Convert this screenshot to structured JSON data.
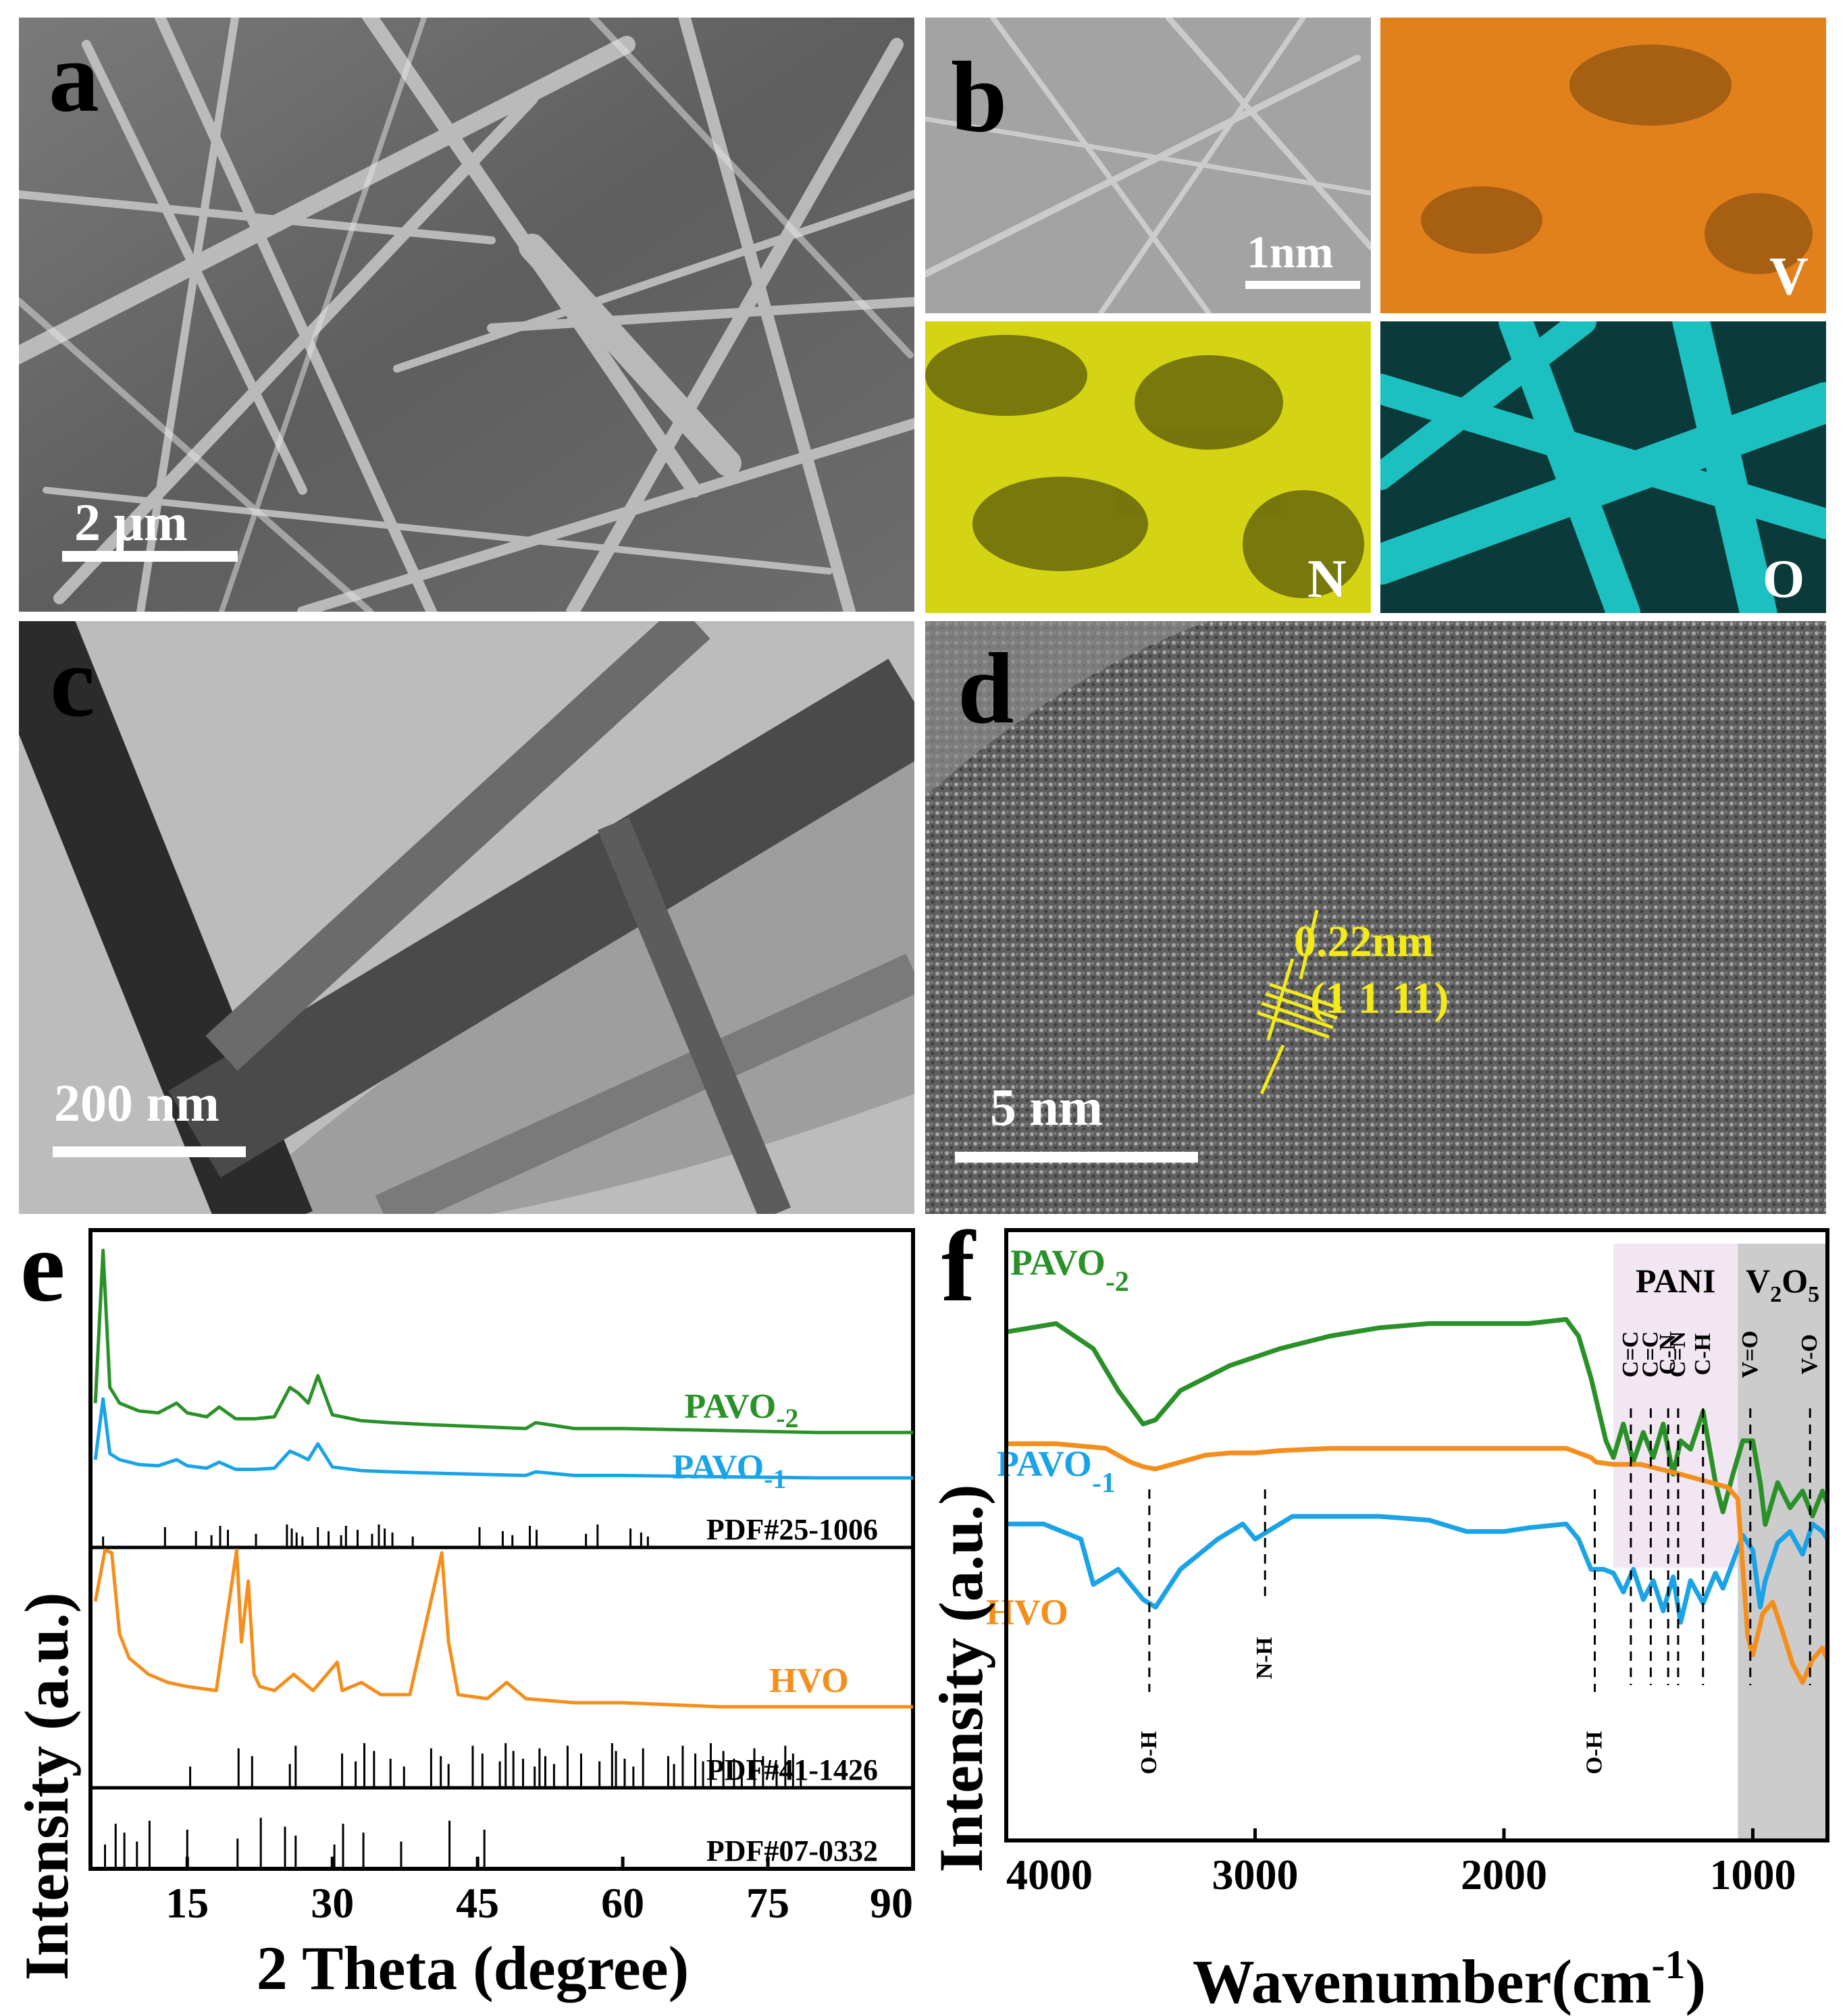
{
  "panels": {
    "a": {
      "label": "a",
      "scale_bar": "2 μm"
    },
    "b": {
      "label": "b",
      "scale_bar": "1nm",
      "maps": [
        {
          "element": "V",
          "color": "#e2811c"
        },
        {
          "element": "N",
          "color": "#d4d415"
        },
        {
          "element": "O",
          "color": "#21d8d8"
        }
      ]
    },
    "c": {
      "label": "c",
      "scale_bar": "200 nm"
    },
    "d": {
      "label": "d",
      "scale_bar": "5 nm",
      "lattice_spacing": "0.22nm",
      "lattice_plane": "(1 1 11)",
      "annotation_color": "#f2ea1a"
    }
  },
  "chart_data": [
    {
      "panel": "e",
      "type": "line",
      "xlabel": "2 Theta (degree)",
      "ylabel": "Intensity (a.u.)",
      "xlim": [
        5,
        90
      ],
      "xticks": [
        15,
        30,
        45,
        60,
        75,
        90
      ],
      "series": [
        {
          "name": "PAVO-2",
          "name_main": "PAVO",
          "name_sub": "-2",
          "color": "#2a9128",
          "x": [
            5.5,
            6.3,
            7.0,
            8,
            10,
            12,
            13.9,
            15,
            17,
            18.3,
            20,
            22,
            24,
            25.6,
            26.5,
            27.5,
            28.5,
            30,
            33,
            36,
            40,
            45,
            50,
            51,
            55,
            60,
            70,
            80,
            90
          ],
          "y": [
            0.22,
            1.0,
            0.3,
            0.22,
            0.18,
            0.17,
            0.22,
            0.17,
            0.15,
            0.2,
            0.14,
            0.14,
            0.15,
            0.3,
            0.27,
            0.22,
            0.36,
            0.16,
            0.13,
            0.12,
            0.11,
            0.1,
            0.09,
            0.12,
            0.09,
            0.09,
            0.08,
            0.07,
            0.07
          ]
        },
        {
          "name": "PAVO-1",
          "name_main": "PAVO",
          "name_sub": "-1",
          "color": "#1aa3e6",
          "x": [
            5.5,
            6.3,
            7.0,
            8,
            10,
            12,
            13.9,
            15,
            17,
            18.3,
            20,
            22,
            24,
            25.6,
            26.5,
            27.5,
            28.5,
            30,
            33,
            36,
            40,
            45,
            50,
            51,
            55,
            60,
            70,
            80,
            90
          ],
          "y": [
            0.2,
            0.7,
            0.25,
            0.2,
            0.16,
            0.15,
            0.2,
            0.15,
            0.13,
            0.18,
            0.12,
            0.12,
            0.13,
            0.27,
            0.24,
            0.2,
            0.33,
            0.14,
            0.11,
            0.1,
            0.09,
            0.08,
            0.07,
            0.1,
            0.07,
            0.07,
            0.06,
            0.05,
            0.05
          ]
        },
        {
          "name": "HVO",
          "color": "#f48e1c",
          "x": [
            5.5,
            6.5,
            7.2,
            8,
            9,
            11,
            13,
            15,
            18,
            20.1,
            20.6,
            21.3,
            21.9,
            22.5,
            24,
            26,
            28,
            30.5,
            31,
            33,
            35,
            38,
            41.3,
            42,
            43,
            46,
            48,
            50,
            55,
            60,
            70,
            80,
            90
          ],
          "y": [
            0.3,
            0.55,
            0.42,
            0.22,
            0.16,
            0.12,
            0.1,
            0.09,
            0.08,
            1.0,
            0.2,
            0.35,
            0.12,
            0.09,
            0.08,
            0.12,
            0.08,
            0.15,
            0.08,
            0.1,
            0.07,
            0.07,
            0.42,
            0.2,
            0.07,
            0.06,
            0.1,
            0.06,
            0.05,
            0.05,
            0.04,
            0.04,
            0.04
          ]
        }
      ],
      "reference_patterns": [
        {
          "name": "PDF#25-1006",
          "peaks": [
            6.3,
            12.7,
            15.9,
            17.5,
            18.4,
            19.2,
            22.1,
            25.3,
            25.8,
            26.3,
            26.9,
            28.5,
            29.6,
            30.9,
            31.4,
            32.6,
            34.1,
            34.8,
            35.4,
            36.2,
            38.3,
            45.2,
            47.6,
            48.6,
            50.4,
            51.1,
            56.2,
            57.4,
            60.8,
            61.9,
            62.6
          ],
          "color": "#000000"
        },
        {
          "name": "PDF#41-1426",
          "peaks": [
            15.3,
            20.3,
            21.7,
            25.6,
            26.2,
            31.0,
            32.4,
            33.3,
            34.3,
            36.0,
            37.4,
            40.2,
            41.2,
            42.0,
            44.5,
            45.5,
            47.3,
            47.9,
            48.7,
            49.7,
            50.9,
            51.4,
            52.0,
            52.9,
            54.3,
            55.7,
            57.6,
            58.9,
            59.3,
            60.2,
            61.1,
            62.1,
            64.7,
            65.3,
            66.2,
            67.5,
            68.3,
            69.1,
            70.4,
            71.5,
            72.3,
            73.6,
            74.5,
            75.9,
            76.8,
            77.6,
            78.4
          ],
          "color": "#000000"
        },
        {
          "name": "PDF#07-0332",
          "peaks": [
            6.5,
            7.6,
            8.5,
            9.8,
            11.1,
            15.0,
            20.2,
            22.6,
            25.1,
            26.2,
            30.2,
            31.1,
            33.2,
            37.1,
            42.1,
            45.7
          ],
          "color": "#000000"
        }
      ]
    },
    {
      "panel": "f",
      "type": "line",
      "xlabel": "Wavenumber(cm-1)",
      "xlabel_main": "Wavenumber(cm",
      "xlabel_sup": "-1",
      "xlabel_close": ")",
      "ylabel": "Intensity (a.u.)",
      "xlim": [
        4000,
        700
      ],
      "xticks": [
        4000,
        3000,
        2000,
        1000
      ],
      "regions": [
        {
          "name": "PANI",
          "from": 1560,
          "to": 1060,
          "color": "#f1e6f1"
        },
        {
          "name": "V2O5",
          "name_main": "V",
          "name_sub1": "2",
          "name_mid": "O",
          "name_sub2": "5",
          "from": 1060,
          "to": 700,
          "color": "#cccccc"
        }
      ],
      "series": [
        {
          "name": "PAVO-2",
          "name_main": "PAVO",
          "name_sub": "-2",
          "color": "#2a9128",
          "x": [
            4000,
            3800,
            3650,
            3550,
            3450,
            3400,
            3300,
            3100,
            2900,
            2700,
            2500,
            2300,
            2100,
            1900,
            1750,
            1700,
            1650,
            1590,
            1560,
            1520,
            1480,
            1440,
            1400,
            1360,
            1320,
            1290,
            1250,
            1200,
            1150,
            1120,
            1080,
            1040,
            1000,
            970,
            950,
            900,
            850,
            800,
            760,
            720,
            700
          ],
          "y": [
            0.86,
            0.88,
            0.82,
            0.72,
            0.64,
            0.65,
            0.72,
            0.78,
            0.82,
            0.85,
            0.87,
            0.88,
            0.88,
            0.88,
            0.89,
            0.85,
            0.75,
            0.6,
            0.56,
            0.64,
            0.55,
            0.62,
            0.56,
            0.64,
            0.52,
            0.6,
            0.58,
            0.67,
            0.5,
            0.43,
            0.52,
            0.6,
            0.6,
            0.5,
            0.4,
            0.5,
            0.44,
            0.48,
            0.42,
            0.48,
            0.45
          ]
        },
        {
          "name": "PAVO-1",
          "name_main": "PAVO",
          "name_sub": "-1",
          "color": "#1aa3e6",
          "x": [
            4000,
            3850,
            3700,
            3650,
            3550,
            3450,
            3400,
            3300,
            3150,
            3050,
            3000,
            2950,
            2850,
            2700,
            2500,
            2300,
            2150,
            2000,
            1900,
            1750,
            1700,
            1650,
            1600,
            1560,
            1520,
            1480,
            1440,
            1400,
            1360,
            1320,
            1290,
            1250,
            1200,
            1150,
            1120,
            1080,
            1040,
            1000,
            970,
            950,
            900,
            850,
            800,
            760,
            720,
            700
          ],
          "y": [
            0.48,
            0.48,
            0.44,
            0.32,
            0.36,
            0.28,
            0.26,
            0.36,
            0.44,
            0.48,
            0.44,
            0.46,
            0.5,
            0.5,
            0.5,
            0.49,
            0.46,
            0.46,
            0.47,
            0.48,
            0.44,
            0.36,
            0.36,
            0.35,
            0.3,
            0.36,
            0.28,
            0.33,
            0.25,
            0.34,
            0.22,
            0.33,
            0.27,
            0.35,
            0.31,
            0.38,
            0.45,
            0.41,
            0.26,
            0.33,
            0.43,
            0.46,
            0.4,
            0.48,
            0.46,
            0.44
          ]
        },
        {
          "name": "HVO",
          "color": "#f48e1c",
          "x": [
            4000,
            3800,
            3600,
            3500,
            3450,
            3400,
            3300,
            3200,
            3100,
            3000,
            2900,
            2700,
            2500,
            2300,
            2100,
            1900,
            1750,
            1700,
            1650,
            1630,
            1560,
            1450,
            1300,
            1200,
            1100,
            1060,
            1040,
            1020,
            1000,
            960,
            920,
            880,
            840,
            800,
            760,
            720,
            700
          ],
          "y": [
            0.14,
            0.14,
            0.12,
            0.06,
            0.04,
            0.03,
            0.06,
            0.09,
            0.1,
            0.1,
            0.11,
            0.12,
            0.12,
            0.12,
            0.12,
            0.12,
            0.12,
            0.1,
            0.08,
            0.06,
            0.05,
            0.05,
            0.01,
            -0.02,
            -0.05,
            -0.1,
            -0.4,
            -0.7,
            -0.78,
            -0.6,
            -0.55,
            -0.68,
            -0.82,
            -0.9,
            -0.8,
            -0.75,
            -0.8
          ]
        }
      ],
      "bond_labels": [
        {
          "text": "O-H",
          "x": 3425
        },
        {
          "text": "N-H",
          "x": 2960
        },
        {
          "text": "O-H",
          "x": 1635
        },
        {
          "text": "C=C",
          "x": 1490
        },
        {
          "text": "C=C",
          "x": 1410
        },
        {
          "text": "C-N",
          "x": 1340
        },
        {
          "text": "C=N",
          "x": 1300
        },
        {
          "text": "C-H",
          "x": 1200
        },
        {
          "text": "V=O",
          "x": 1010
        },
        {
          "text": "V-O",
          "x": 770
        }
      ]
    }
  ]
}
